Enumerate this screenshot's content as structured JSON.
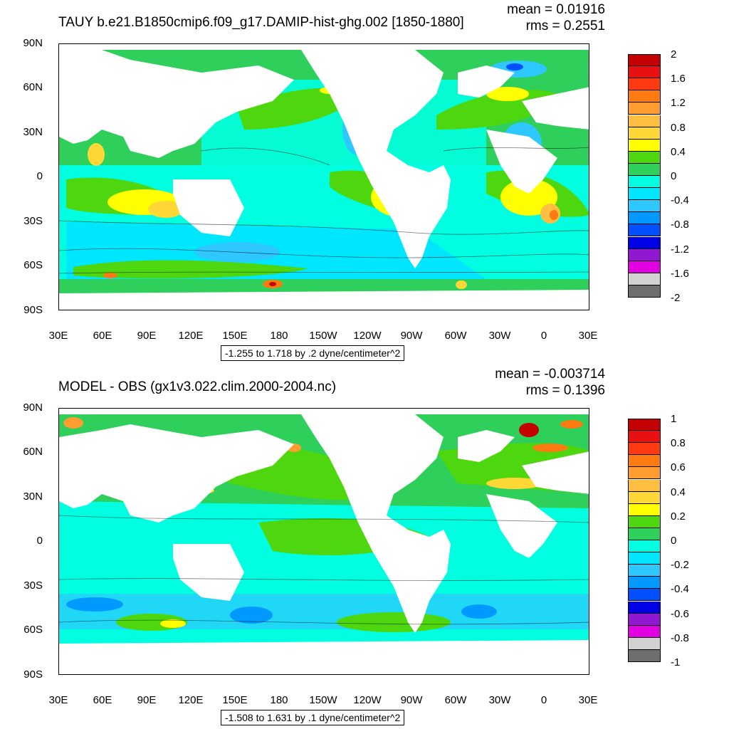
{
  "chart_data": [
    {
      "type": "heatmap",
      "title": "TAUY b.e21.B1850cmip6.f09_g17.DAMIP-hist-ghg.002 [1850-1880]",
      "mean": "mean = 0.01916",
      "rms": "rms = 0.2551",
      "y_ticks": [
        "90N",
        "60N",
        "30N",
        "0",
        "30S",
        "60S",
        "90S"
      ],
      "x_ticks": [
        "30E",
        "60E",
        "90E",
        "120E",
        "150E",
        "180",
        "150W",
        "120W",
        "90W",
        "60W",
        "30W",
        "0",
        "30E"
      ],
      "contour_info": "-1.255 to 1.718 by .2 dyne/centimeter^2",
      "colorbar": {
        "labels": [
          "2",
          "1.6",
          "1.2",
          "0.8",
          "0.4",
          "0",
          "-0.4",
          "-0.8",
          "-1.2",
          "-1.6",
          "-2"
        ],
        "colors": [
          "#c40000",
          "#e81010",
          "#ff3a10",
          "#ff7a10",
          "#ff9d30",
          "#ffbf40",
          "#ffd838",
          "#ffff00",
          "#4ed60e",
          "#2fcf5c",
          "#00ffe0",
          "#00e6ff",
          "#2ec7ff",
          "#0099ff",
          "#0050ff",
          "#0000e6",
          "#9018d0",
          "#e000e0",
          "#d2d2d2",
          "#6e6e6e"
        ]
      }
    },
    {
      "type": "heatmap",
      "title": "MODEL - OBS (gx1v3.022.clim.2000-2004.nc)",
      "mean": "mean = -0.003714",
      "rms": "rms = 0.1396",
      "y_ticks": [
        "90N",
        "60N",
        "30N",
        "0",
        "30S",
        "60S",
        "90S"
      ],
      "x_ticks": [
        "30E",
        "60E",
        "90E",
        "120E",
        "150E",
        "180",
        "150W",
        "120W",
        "90W",
        "60W",
        "30W",
        "0",
        "30E"
      ],
      "contour_info": "-1.508 to 1.631 by .1 dyne/centimeter^2",
      "colorbar": {
        "labels": [
          "1",
          "0.8",
          "0.6",
          "0.4",
          "0.2",
          "0",
          "-0.2",
          "-0.4",
          "-0.6",
          "-0.8",
          "-1"
        ],
        "colors": [
          "#c40000",
          "#e81010",
          "#ff3a10",
          "#ff7a10",
          "#ff9d30",
          "#ffbf40",
          "#ffd838",
          "#ffff00",
          "#4ed60e",
          "#2fcf5c",
          "#00ffe0",
          "#00e6ff",
          "#2ec7ff",
          "#0099ff",
          "#0050ff",
          "#0000e6",
          "#9018d0",
          "#e000e0",
          "#d2d2d2",
          "#6e6e6e"
        ]
      }
    }
  ]
}
